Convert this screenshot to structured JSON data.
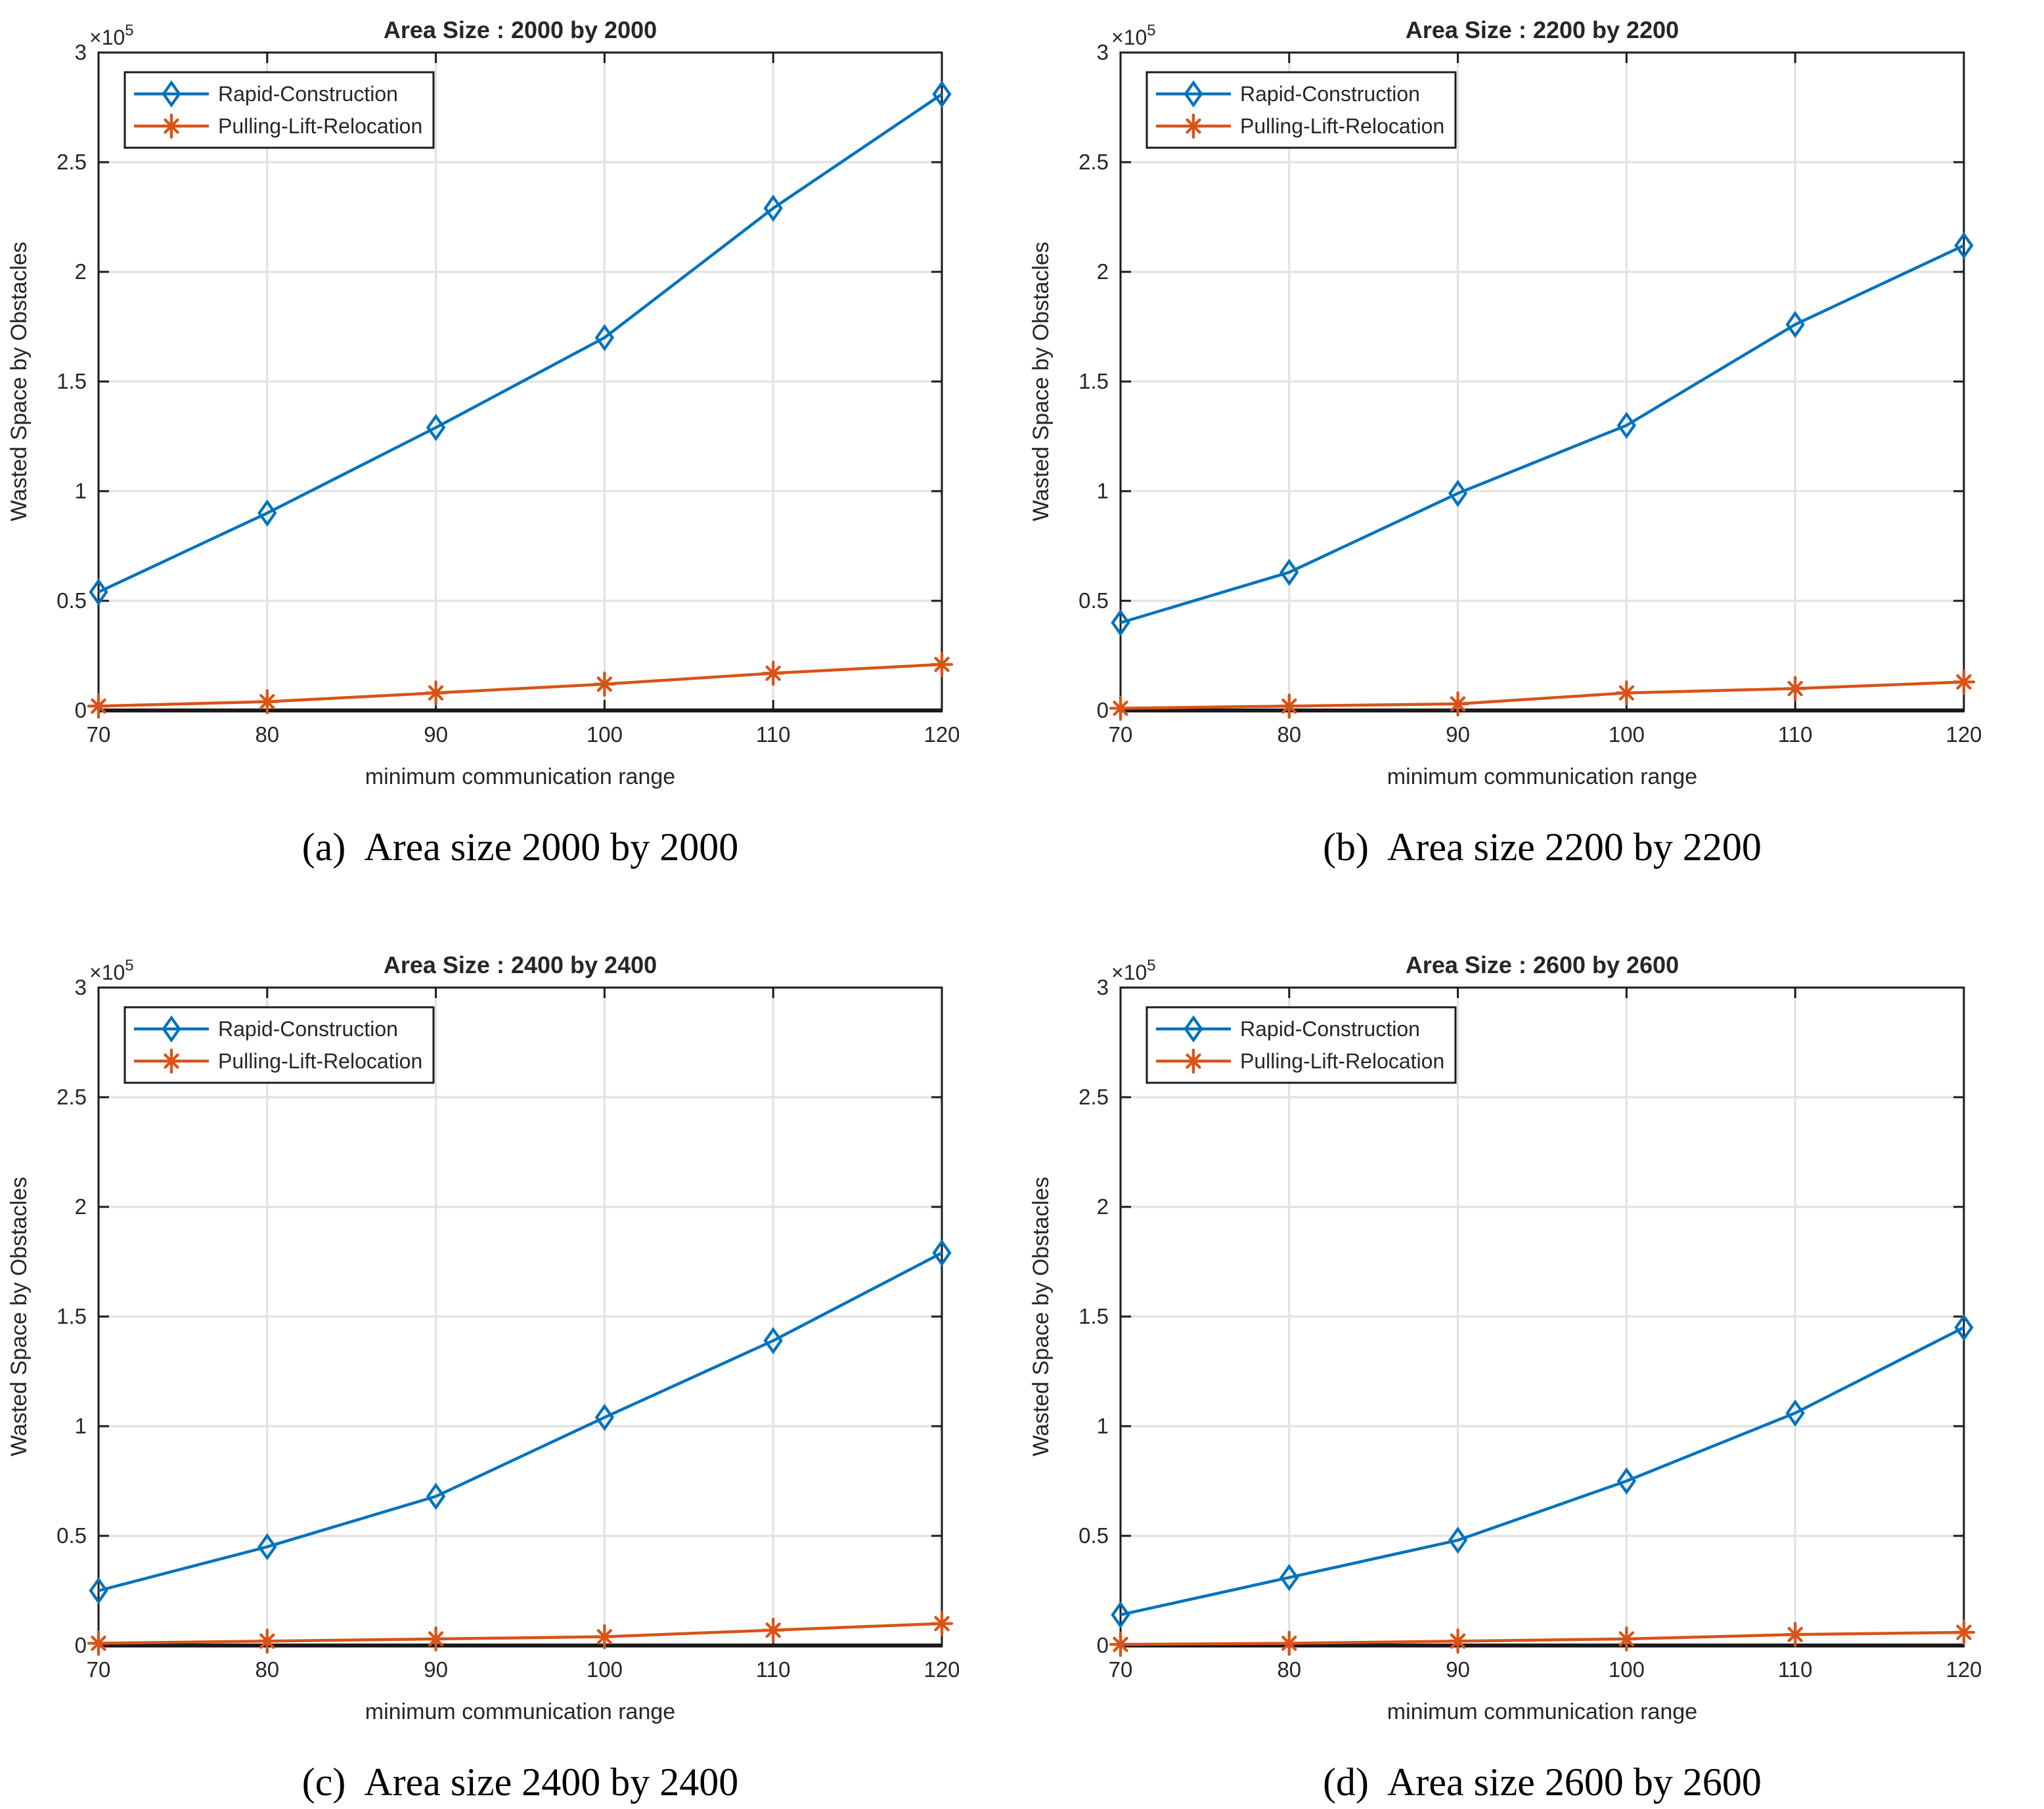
{
  "page": {
    "background": "#ffffff",
    "figure_type": "2x2 grid of line charts"
  },
  "palette": {
    "rapid_construction": "#0072BD",
    "pulling_lift_relocation": "#D95319",
    "grid_line": "#E2E2E2",
    "axis": "#1b1b1b"
  },
  "chart_data": [
    {
      "type": "line",
      "panel": "a",
      "title": "Area Size : 2000 by 2000",
      "caption_tag": "(a)",
      "caption_text": "Area size 2000 by 2000",
      "xlabel": "minimum communication range",
      "ylabel": "Wasted Space by Obstacles",
      "y_scale_label": "×10",
      "y_scale_power": "5",
      "y_unit": "1e5",
      "x": [
        70,
        80,
        90,
        100,
        110,
        120
      ],
      "xtick_labels": [
        "70",
        "80",
        "90",
        "100",
        "110",
        "120"
      ],
      "xlim": [
        70,
        120
      ],
      "yticks_e5": [
        0,
        0.5,
        1,
        1.5,
        2,
        2.5,
        3
      ],
      "ytick_labels": [
        "0",
        "0.5",
        "1",
        "1.5",
        "2",
        "2.5",
        "3"
      ],
      "ylim_e5": [
        0,
        3
      ],
      "grid": true,
      "legend_position": "top-left",
      "series": [
        {
          "name": "Rapid-Construction",
          "color": "#0072BD",
          "marker": "diamond",
          "values_e5": [
            0.54,
            0.9,
            1.29,
            1.7,
            2.29,
            2.81
          ]
        },
        {
          "name": "Pulling-Lift-Relocation",
          "color": "#D95319",
          "marker": "asterisk",
          "values_e5": [
            0.02,
            0.04,
            0.08,
            0.12,
            0.17,
            0.21
          ]
        }
      ]
    },
    {
      "type": "line",
      "panel": "b",
      "title": "Area Size : 2200 by 2200",
      "caption_tag": "(b)",
      "caption_text": "Area size 2200 by 2200",
      "xlabel": "minimum communication range",
      "ylabel": "Wasted Space by Obstacles",
      "y_scale_label": "×10",
      "y_scale_power": "5",
      "y_unit": "1e5",
      "x": [
        70,
        80,
        90,
        100,
        110,
        120
      ],
      "xtick_labels": [
        "70",
        "80",
        "90",
        "100",
        "110",
        "120"
      ],
      "xlim": [
        70,
        120
      ],
      "yticks_e5": [
        0,
        0.5,
        1,
        1.5,
        2,
        2.5,
        3
      ],
      "ytick_labels": [
        "0",
        "0.5",
        "1",
        "1.5",
        "2",
        "2.5",
        "3"
      ],
      "ylim_e5": [
        0,
        3
      ],
      "grid": true,
      "legend_position": "top-left",
      "series": [
        {
          "name": "Rapid-Construction",
          "color": "#0072BD",
          "marker": "diamond",
          "values_e5": [
            0.4,
            0.63,
            0.99,
            1.3,
            1.76,
            2.12
          ]
        },
        {
          "name": "Pulling-Lift-Relocation",
          "color": "#D95319",
          "marker": "asterisk",
          "values_e5": [
            0.01,
            0.02,
            0.03,
            0.08,
            0.1,
            0.13
          ]
        }
      ]
    },
    {
      "type": "line",
      "panel": "c",
      "title": "Area Size : 2400 by 2400",
      "caption_tag": "(c)",
      "caption_text": "Area size 2400 by 2400",
      "xlabel": "minimum communication range",
      "ylabel": "Wasted Space by Obstacles",
      "y_scale_label": "×10",
      "y_scale_power": "5",
      "y_unit": "1e5",
      "x": [
        70,
        80,
        90,
        100,
        110,
        120
      ],
      "xtick_labels": [
        "70",
        "80",
        "90",
        "100",
        "110",
        "120"
      ],
      "xlim": [
        70,
        120
      ],
      "yticks_e5": [
        0,
        0.5,
        1,
        1.5,
        2,
        2.5,
        3
      ],
      "ytick_labels": [
        "0",
        "0.5",
        "1",
        "1.5",
        "2",
        "2.5",
        "3"
      ],
      "ylim_e5": [
        0,
        3
      ],
      "grid": true,
      "legend_position": "top-left",
      "series": [
        {
          "name": "Rapid-Construction",
          "color": "#0072BD",
          "marker": "diamond",
          "values_e5": [
            0.25,
            0.45,
            0.68,
            1.04,
            1.39,
            1.79
          ]
        },
        {
          "name": "Pulling-Lift-Relocation",
          "color": "#D95319",
          "marker": "asterisk",
          "values_e5": [
            0.01,
            0.02,
            0.03,
            0.04,
            0.07,
            0.1
          ]
        }
      ]
    },
    {
      "type": "line",
      "panel": "d",
      "title": "Area Size : 2600 by 2600",
      "caption_tag": "(d)",
      "caption_text": "Area size 2600 by 2600",
      "xlabel": "minimum communication range",
      "ylabel": "Wasted Space by Obstacles",
      "y_scale_label": "×10",
      "y_scale_power": "5",
      "y_unit": "1e5",
      "x": [
        70,
        80,
        90,
        100,
        110,
        120
      ],
      "xtick_labels": [
        "70",
        "80",
        "90",
        "100",
        "110",
        "120"
      ],
      "xlim": [
        70,
        120
      ],
      "yticks_e5": [
        0,
        0.5,
        1,
        1.5,
        2,
        2.5,
        3
      ],
      "ytick_labels": [
        "0",
        "0.5",
        "1",
        "1.5",
        "2",
        "2.5",
        "3"
      ],
      "ylim_e5": [
        0,
        3
      ],
      "grid": true,
      "legend_position": "top-left",
      "series": [
        {
          "name": "Rapid-Construction",
          "color": "#0072BD",
          "marker": "diamond",
          "values_e5": [
            0.14,
            0.31,
            0.48,
            0.75,
            1.06,
            1.45
          ]
        },
        {
          "name": "Pulling-Lift-Relocation",
          "color": "#D95319",
          "marker": "asterisk",
          "values_e5": [
            0.005,
            0.01,
            0.02,
            0.03,
            0.05,
            0.06
          ]
        }
      ]
    }
  ]
}
